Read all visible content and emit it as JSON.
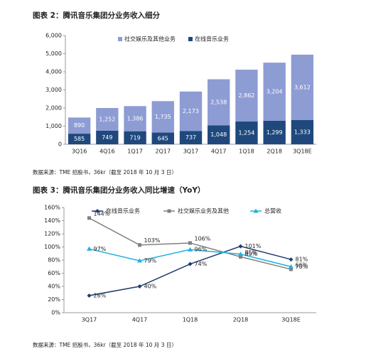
{
  "chart_data": [
    {
      "type": "bar",
      "stacked": true,
      "title": "图表 2：腾讯音乐集团分业务收入细分",
      "categories": [
        "3Q16",
        "4Q16",
        "1Q17",
        "2Q17",
        "3Q17",
        "4Q17",
        "1Q18",
        "2Q18",
        "3Q18E"
      ],
      "series": [
        {
          "name": "社交娱乐及其他业务",
          "color": "#8e9cd4",
          "values": [
            890,
            1252,
            1386,
            1735,
            2173,
            2538,
            2862,
            3204,
            3612
          ],
          "value_labels": [
            "890",
            "1,252",
            "1,386",
            "1,735",
            "2,173",
            "2,538",
            "2,862",
            "3,204",
            "3,612"
          ]
        },
        {
          "name": "在线音乐业务",
          "color": "#1f497d",
          "values": [
            585,
            749,
            719,
            645,
            737,
            1048,
            1254,
            1299,
            1333
          ],
          "value_labels": [
            "585",
            "749",
            "719",
            "645",
            "737",
            "1,048",
            "1,254",
            "1,299",
            "1,333"
          ]
        }
      ],
      "ylim": [
        0,
        6000
      ],
      "yticks": [
        0,
        {
          "value": 1000,
          "label": "1,000"
        },
        {
          "value": 2000,
          "label": "2,000"
        },
        {
          "value": 3000,
          "label": "3,000"
        },
        {
          "value": 4000,
          "label": "4,000"
        },
        {
          "value": 5000,
          "label": "5,000"
        },
        {
          "value": 6000,
          "label": "6,000"
        }
      ],
      "grid": false,
      "legend": "top",
      "source": "数据来源：TME 招股书，36kr（截至 2018 年 10 月 3 日）"
    },
    {
      "type": "line",
      "title": "图表 3：腾讯音乐集团分业务收入同比增速（YoY）",
      "categories": [
        "3Q17",
        "4Q17",
        "1Q18",
        "2Q18",
        "3Q18E"
      ],
      "series": [
        {
          "name": "在线音乐业务",
          "color": "#1f3b70",
          "marker": "diamond",
          "values": [
            26,
            40,
            74,
            101,
            81
          ],
          "value_labels": [
            "26%",
            "40%",
            "74%",
            "101%",
            "81%"
          ]
        },
        {
          "name": "社交娱乐业务及其他",
          "color": "#808080",
          "marker": "square",
          "values": [
            144,
            103,
            106,
            85,
            66
          ],
          "value_labels": [
            "144%",
            "103%",
            "106%",
            "85%",
            "66%"
          ]
        },
        {
          "name": "总营收",
          "color": "#1fb0e0",
          "marker": "triangle",
          "values": [
            97,
            79,
            96,
            89,
            70
          ],
          "value_labels": [
            "97%",
            "79%",
            "96%",
            "89%",
            "70%"
          ]
        }
      ],
      "ylim": [
        0,
        160
      ],
      "yticks": [
        {
          "value": 0,
          "label": "0%"
        },
        {
          "value": 20,
          "label": "20%"
        },
        {
          "value": 40,
          "label": "40%"
        },
        {
          "value": 60,
          "label": "60%"
        },
        {
          "value": 80,
          "label": "80%"
        },
        {
          "value": 100,
          "label": "100%"
        },
        {
          "value": 120,
          "label": "120%"
        },
        {
          "value": 140,
          "label": "140%"
        },
        {
          "value": 160,
          "label": "160%"
        }
      ],
      "grid": false,
      "legend": "top",
      "source": "数据来源：TME 招股书，36kr（截至 2018 年 10 月 3 日）"
    }
  ]
}
